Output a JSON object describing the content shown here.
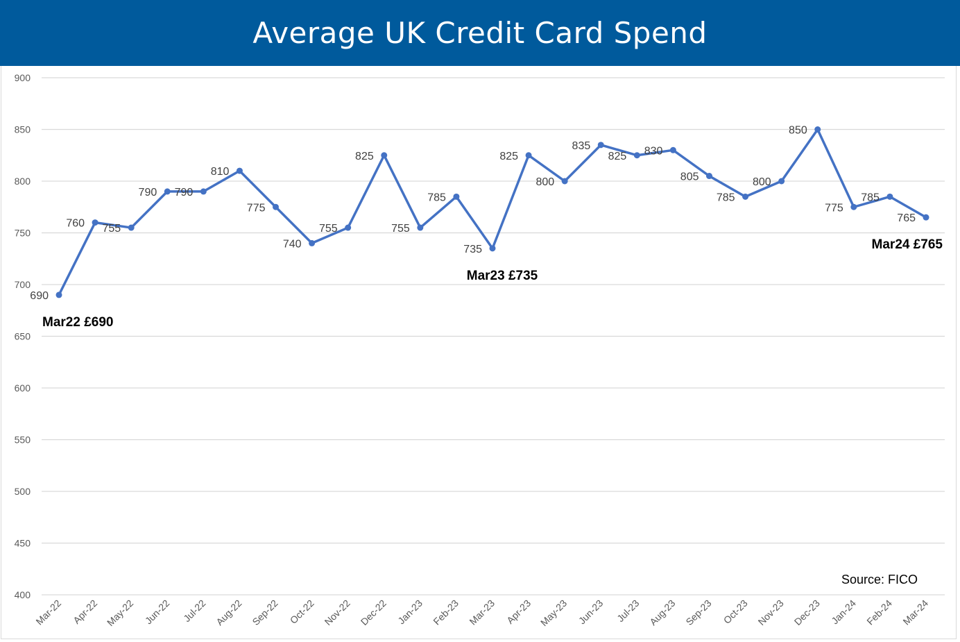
{
  "chart_data": {
    "type": "line",
    "title": "Average UK Credit Card Spend",
    "x": [
      "Mar-22",
      "Apr-22",
      "May-22",
      "Jun-22",
      "Jul-22",
      "Aug-22",
      "Sep-22",
      "Oct-22",
      "Nov-22",
      "Dec-22",
      "Jan-23",
      "Feb-23",
      "Mar-23",
      "Apr-23",
      "May-23",
      "Jun-23",
      "Jul-23",
      "Aug-23",
      "Sep-23",
      "Oct-23",
      "Nov-23",
      "Dec-23",
      "Jan-24",
      "Feb-24",
      "Mar-24"
    ],
    "series": [
      {
        "values": [
          690,
          760,
          755,
          790,
          790,
          810,
          775,
          740,
          755,
          825,
          755,
          785,
          735,
          825,
          800,
          835,
          825,
          830,
          805,
          785,
          800,
          850,
          775,
          785,
          765
        ],
        "color": "#4472c4"
      }
    ],
    "ylim": [
      400,
      900
    ],
    "yticks": [
      400,
      450,
      500,
      550,
      600,
      650,
      700,
      750,
      800,
      850,
      900
    ],
    "grid": true,
    "annotations": [
      {
        "text": "Mar22 £690",
        "index": 0
      },
      {
        "text": "Mar23 £735",
        "index": 12
      },
      {
        "text": "Mar24 £765",
        "index": 24
      }
    ],
    "source": "Source: FICO"
  }
}
